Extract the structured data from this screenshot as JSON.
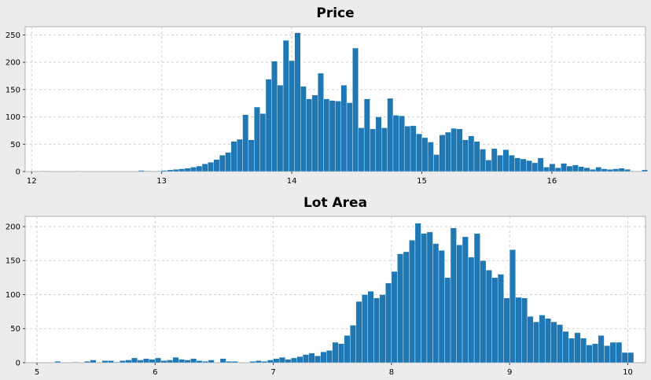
{
  "chart_data": [
    {
      "type": "bar",
      "title": "Price",
      "xlabel": "",
      "ylabel": "",
      "xlim": [
        11.95,
        16.72
      ],
      "ylim": [
        0,
        265
      ],
      "xticks": [
        12,
        13,
        14,
        15,
        16
      ],
      "yticks": [
        0,
        50,
        100,
        150,
        200,
        250
      ],
      "grid": true,
      "bin_start": 12.02,
      "bin_width": 0.0445,
      "values": [
        0,
        1,
        0,
        0,
        0,
        0,
        0,
        1,
        0,
        0,
        0,
        0,
        0,
        0,
        0,
        0,
        0,
        0,
        2,
        1,
        0,
        1,
        2,
        3,
        4,
        5,
        6,
        8,
        10,
        14,
        17,
        22,
        30,
        35,
        55,
        59,
        104,
        58,
        118,
        106,
        169,
        202,
        158,
        240,
        203,
        254,
        156,
        133,
        140,
        180,
        133,
        130,
        129,
        158,
        126,
        226,
        80,
        133,
        78,
        100,
        80,
        134,
        103,
        102,
        83,
        84,
        69,
        62,
        54,
        31,
        67,
        72,
        79,
        78,
        58,
        65,
        55,
        41,
        21,
        42,
        30,
        40,
        30,
        25,
        23,
        20,
        16,
        25,
        8,
        14,
        7,
        15,
        10,
        12,
        9,
        7,
        4,
        8,
        5,
        4,
        5,
        6,
        4,
        1,
        0,
        3,
        0,
        1,
        1,
        0,
        2,
        0,
        5,
        0,
        0,
        2,
        0,
        2,
        0,
        0,
        0,
        0,
        0
      ]
    },
    {
      "type": "bar",
      "title": "Lot Area",
      "xlabel": "",
      "ylabel": "",
      "xlim": [
        4.9,
        10.15
      ],
      "ylim": [
        0,
        215
      ],
      "xticks": [
        5,
        6,
        7,
        8,
        9,
        10
      ],
      "yticks": [
        0,
        50,
        100,
        150,
        200
      ],
      "grid": true,
      "bin_start": 5.05,
      "bin_width": 0.05,
      "values": [
        0,
        0,
        2,
        0,
        0,
        1,
        0,
        2,
        4,
        0,
        3,
        3,
        1,
        3,
        4,
        7,
        4,
        6,
        5,
        7,
        3,
        4,
        8,
        5,
        4,
        6,
        3,
        2,
        4,
        0,
        6,
        2,
        2,
        0,
        0,
        2,
        3,
        2,
        4,
        6,
        8,
        5,
        7,
        9,
        12,
        14,
        10,
        16,
        18,
        30,
        28,
        40,
        55,
        90,
        100,
        105,
        95,
        100,
        117,
        134,
        160,
        163,
        180,
        205,
        190,
        192,
        175,
        165,
        125,
        198,
        173,
        185,
        155,
        190,
        150,
        136,
        125,
        130,
        95,
        166,
        96,
        95,
        68,
        60,
        70,
        65,
        60,
        56,
        46,
        36,
        44,
        36,
        26,
        28,
        40,
        25,
        30,
        30,
        15,
        15
      ]
    }
  ]
}
